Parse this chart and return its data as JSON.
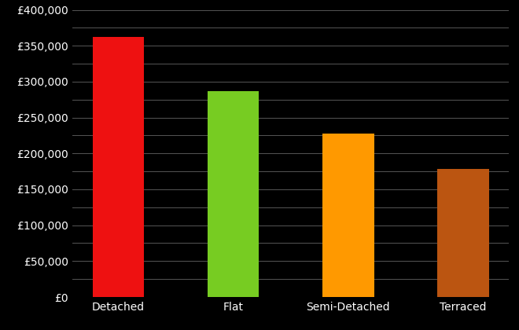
{
  "categories": [
    "Detached",
    "Flat",
    "Semi-Detached",
    "Terraced"
  ],
  "values": [
    362000,
    287000,
    228000,
    178000
  ],
  "bar_colors": [
    "#ee1111",
    "#77cc22",
    "#ff9900",
    "#bb5511"
  ],
  "background_color": "#000000",
  "text_color": "#ffffff",
  "grid_color": "#555555",
  "ylim": [
    0,
    400000
  ],
  "ytick_step": 25000,
  "ytick_label_step": 50000,
  "bar_width": 0.45,
  "tick_fontsize": 10,
  "xtick_fontsize": 10
}
